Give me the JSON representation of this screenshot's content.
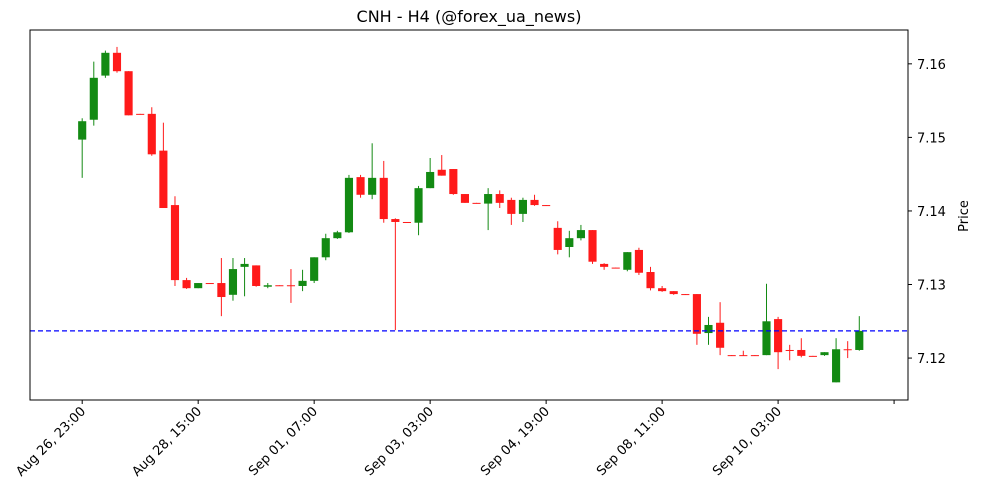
{
  "chart_data": {
    "type": "candlestick",
    "title": "CNH - H4 (@forex_ua_news)",
    "y_label": "Price",
    "categories": [
      "Aug 26, 23:00",
      null,
      null,
      null,
      null,
      null,
      null,
      null,
      null,
      null,
      "Aug 28, 15:00",
      null,
      null,
      null,
      null,
      null,
      null,
      null,
      null,
      null,
      "Sep 01, 07:00",
      null,
      null,
      null,
      null,
      null,
      null,
      null,
      null,
      null,
      "Sep 03, 03:00",
      null,
      null,
      null,
      null,
      null,
      null,
      null,
      null,
      null,
      "Sep 04, 19:00",
      null,
      null,
      null,
      null,
      null,
      null,
      null,
      null,
      null,
      "Sep 08, 11:00",
      null,
      null,
      null,
      null,
      null,
      null,
      null,
      null,
      null,
      "Sep 10, 03:00",
      null,
      null,
      null,
      null,
      null,
      null,
      null
    ],
    "open": [
      7.1497,
      7.1524,
      7.1584,
      7.1615,
      7.159,
      7.1532,
      7.1532,
      7.1482,
      7.1408,
      7.1306,
      7.1295,
      7.1302,
      7.1302,
      7.1286,
      7.1324,
      7.1326,
      7.1297,
      7.1299,
      7.1299,
      7.1298,
      7.1305,
      7.1337,
      7.1363,
      7.1371,
      7.1446,
      7.1422,
      7.1445,
      7.1389,
      7.1385,
      7.1384,
      7.1431,
      7.1456,
      7.1457,
      7.1423,
      7.1411,
      7.141,
      7.1423,
      7.1415,
      7.1396,
      7.1415,
      7.1408,
      7.1377,
      7.1351,
      7.1363,
      7.1374,
      7.1328,
      7.1323,
      7.132,
      7.1347,
      7.1317,
      7.1295,
      7.1291,
      7.1287,
      7.1287,
      7.1234,
      7.1248,
      7.1204,
      7.1204,
      7.1204,
      7.1204,
      7.1253,
      7.1211,
      7.1211,
      7.1203,
      7.1204,
      7.1167,
      7.1212,
      7.1211
    ],
    "high": [
      7.1526,
      7.1603,
      7.1618,
      7.1623,
      7.159,
      7.1532,
      7.1541,
      7.152,
      7.142,
      7.1309,
      7.1302,
      7.1302,
      7.1336,
      7.1336,
      7.1336,
      7.1326,
      7.1302,
      7.1299,
      7.1321,
      7.132,
      7.1337,
      7.1369,
      7.1373,
      7.1449,
      7.1449,
      7.1492,
      7.1468,
      7.139,
      7.1385,
      7.1434,
      7.1472,
      7.1476,
      7.1457,
      7.1423,
      7.1411,
      7.1431,
      7.1428,
      7.1418,
      7.1418,
      7.1422,
      7.1408,
      7.1386,
      7.1373,
      7.1381,
      7.1374,
      7.1329,
      7.1323,
      7.1344,
      7.135,
      7.1324,
      7.1298,
      7.1291,
      7.1287,
      7.1287,
      7.1256,
      7.1276,
      7.1204,
      7.121,
      7.1204,
      7.1301,
      7.1256,
      7.1218,
      7.1227,
      7.1203,
      7.1208,
      7.1227,
      7.1223,
      7.1257
    ],
    "low": [
      7.1445,
      7.1516,
      7.1581,
      7.1588,
      7.153,
      7.1531,
      7.1475,
      7.1404,
      7.1298,
      7.1294,
      7.1295,
      7.1301,
      7.1257,
      7.1278,
      7.1284,
      7.1297,
      7.1295,
      7.1298,
      7.1275,
      7.1291,
      7.1302,
      7.1333,
      7.1362,
      7.137,
      7.1418,
      7.1416,
      7.1384,
      7.1238,
      7.1384,
      7.1367,
      7.1431,
      7.1448,
      7.1422,
      7.1411,
      7.141,
      7.1374,
      7.1404,
      7.1381,
      7.1385,
      7.1407,
      7.1407,
      7.1341,
      7.1337,
      7.136,
      7.1328,
      7.132,
      7.1322,
      7.1318,
      7.1313,
      7.1292,
      7.129,
      7.1286,
      7.1286,
      7.1218,
      7.1218,
      7.1204,
      7.1203,
      7.1203,
      7.1203,
      7.1204,
      7.1185,
      7.1197,
      7.1201,
      7.1202,
      7.1203,
      7.1167,
      7.12,
      7.121
    ],
    "close": [
      7.1522,
      7.1581,
      7.1615,
      7.159,
      7.153,
      7.1531,
      7.1477,
      7.1404,
      7.1306,
      7.1295,
      7.1302,
      7.1301,
      7.1283,
      7.1321,
      7.1328,
      7.1298,
      7.1299,
      7.1298,
      7.1298,
      7.1305,
      7.1337,
      7.1363,
      7.1371,
      7.1445,
      7.1422,
      7.1445,
      7.1389,
      7.1385,
      7.1384,
      7.1431,
      7.1453,
      7.1448,
      7.1423,
      7.1411,
      7.141,
      7.1423,
      7.1411,
      7.1396,
      7.1415,
      7.1408,
      7.1407,
      7.1347,
      7.1363,
      7.1374,
      7.1331,
      7.1324,
      7.1322,
      7.1344,
      7.1316,
      7.1295,
      7.1291,
      7.1287,
      7.1286,
      7.1233,
      7.1245,
      7.1214,
      7.1203,
      7.1203,
      7.1203,
      7.125,
      7.1208,
      7.121,
      7.1203,
      7.1202,
      7.1208,
      7.1212,
      7.1211,
      7.1237
    ],
    "up_color": "#138a13",
    "down_color": "#ff1a1a",
    "xlim": [
      -4.5,
      71.2
    ],
    "xticks": [
      0,
      10,
      20,
      30,
      40,
      50,
      60,
      70
    ],
    "ylim": [
      7.1143,
      7.1646
    ],
    "yticks": [
      7.12,
      7.13,
      7.14,
      7.15,
      7.16
    ],
    "hline": {
      "value": 7.1237,
      "color": "#0000ff"
    }
  }
}
